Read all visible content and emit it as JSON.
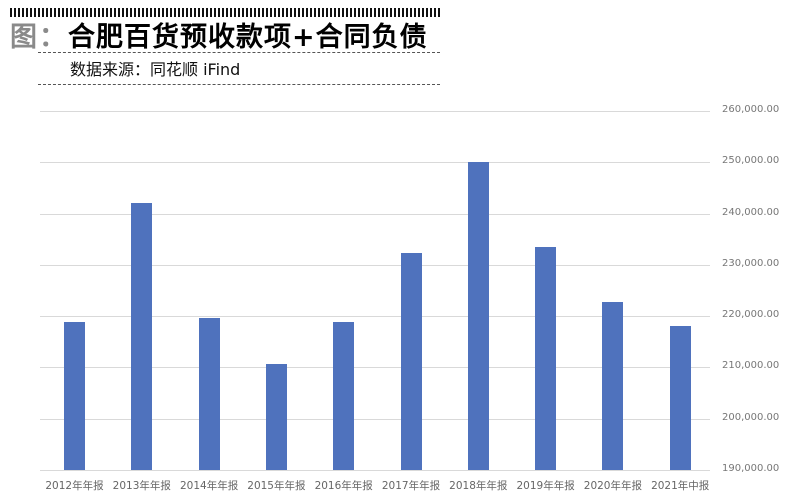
{
  "header": {
    "prefix": "图：",
    "title": "合肥百货预收款项+合同负债",
    "source": "数据来源：同花顺 iFind"
  },
  "chart_data": {
    "type": "bar",
    "title": "合肥百货预收款项+合同负债",
    "xlabel": "",
    "ylabel": "",
    "ylim": [
      190000,
      260000
    ],
    "y_ticks": [
      "190,000.00",
      "200,000.00",
      "210,000.00",
      "220,000.00",
      "230,000.00",
      "240,000.00",
      "250,000.00",
      "260,000.00"
    ],
    "y_tick_values": [
      190000,
      200000,
      210000,
      220000,
      230000,
      240000,
      250000,
      260000
    ],
    "y_axis_position": "right",
    "grid": true,
    "legend": null,
    "categories": [
      "2012年年报",
      "2013年年报",
      "2014年年报",
      "2015年年报",
      "2016年年报",
      "2017年年报",
      "2018年年报",
      "2019年年报",
      "2020年年报",
      "2021年中报"
    ],
    "values": [
      218900,
      242100,
      219600,
      210700,
      218900,
      232300,
      250000,
      233500,
      222800,
      218100
    ],
    "color": "#4f72bd"
  }
}
